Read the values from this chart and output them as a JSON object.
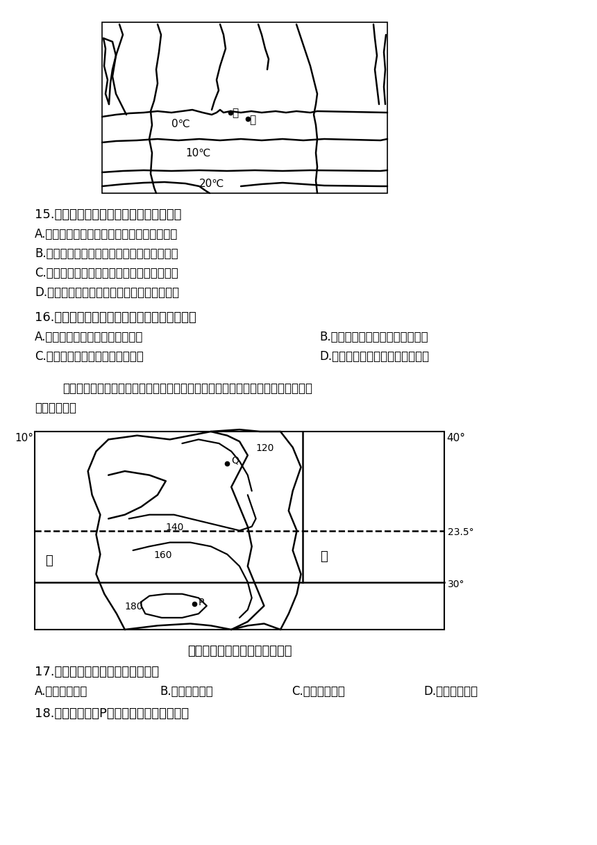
{
  "bg_color": "#ffffff",
  "q15_text": "15.若甲、乙两地都位于陆地上，则（　）",
  "q15_A": "A.该区域位于北半球，甲地海拔低于乙地海拔",
  "q15_B": "B.该区域位于北半球，甲地海拔高于乙地海拔",
  "q15_C": "C.该区域位于南半球，甲地海拔低于乙地海拔",
  "q15_D": "D.该区域位于南半球，甲地海拔高于乙地海拔",
  "q16_text": "16.若甲地位于陆地，乙地位于海洋，则（　）",
  "q16_A": "A.甲地气温高于乙地，此时为夏季",
  "q16_B": "B.甲地气温高于乙地，此时为冬季",
  "q16_C": "C.甲地气温低于乙地，此时为夏季",
  "q16_D": "D.甲地气温低于乙地，此时为冬季",
  "intro_text": "生育期是指从播种到收获所需的天数。读世界某地区冬小麦生长发育期曲线图，完",
  "intro_text2": "成下面小题。",
  "map2_title": "某地区冬小麦生长发育期曲线图",
  "q17_text": "17.如图中大洋甲、乙依次是（　）",
  "q17_A": "A.北冰洋太平洋",
  "q17_B": "B.印度洋大西洋",
  "q17_C": "C.大西洋印度洋",
  "q17_D": "D.太平洋北冰洋",
  "q18_text": "18.下列关于图中P地的说法正确的是（　）"
}
